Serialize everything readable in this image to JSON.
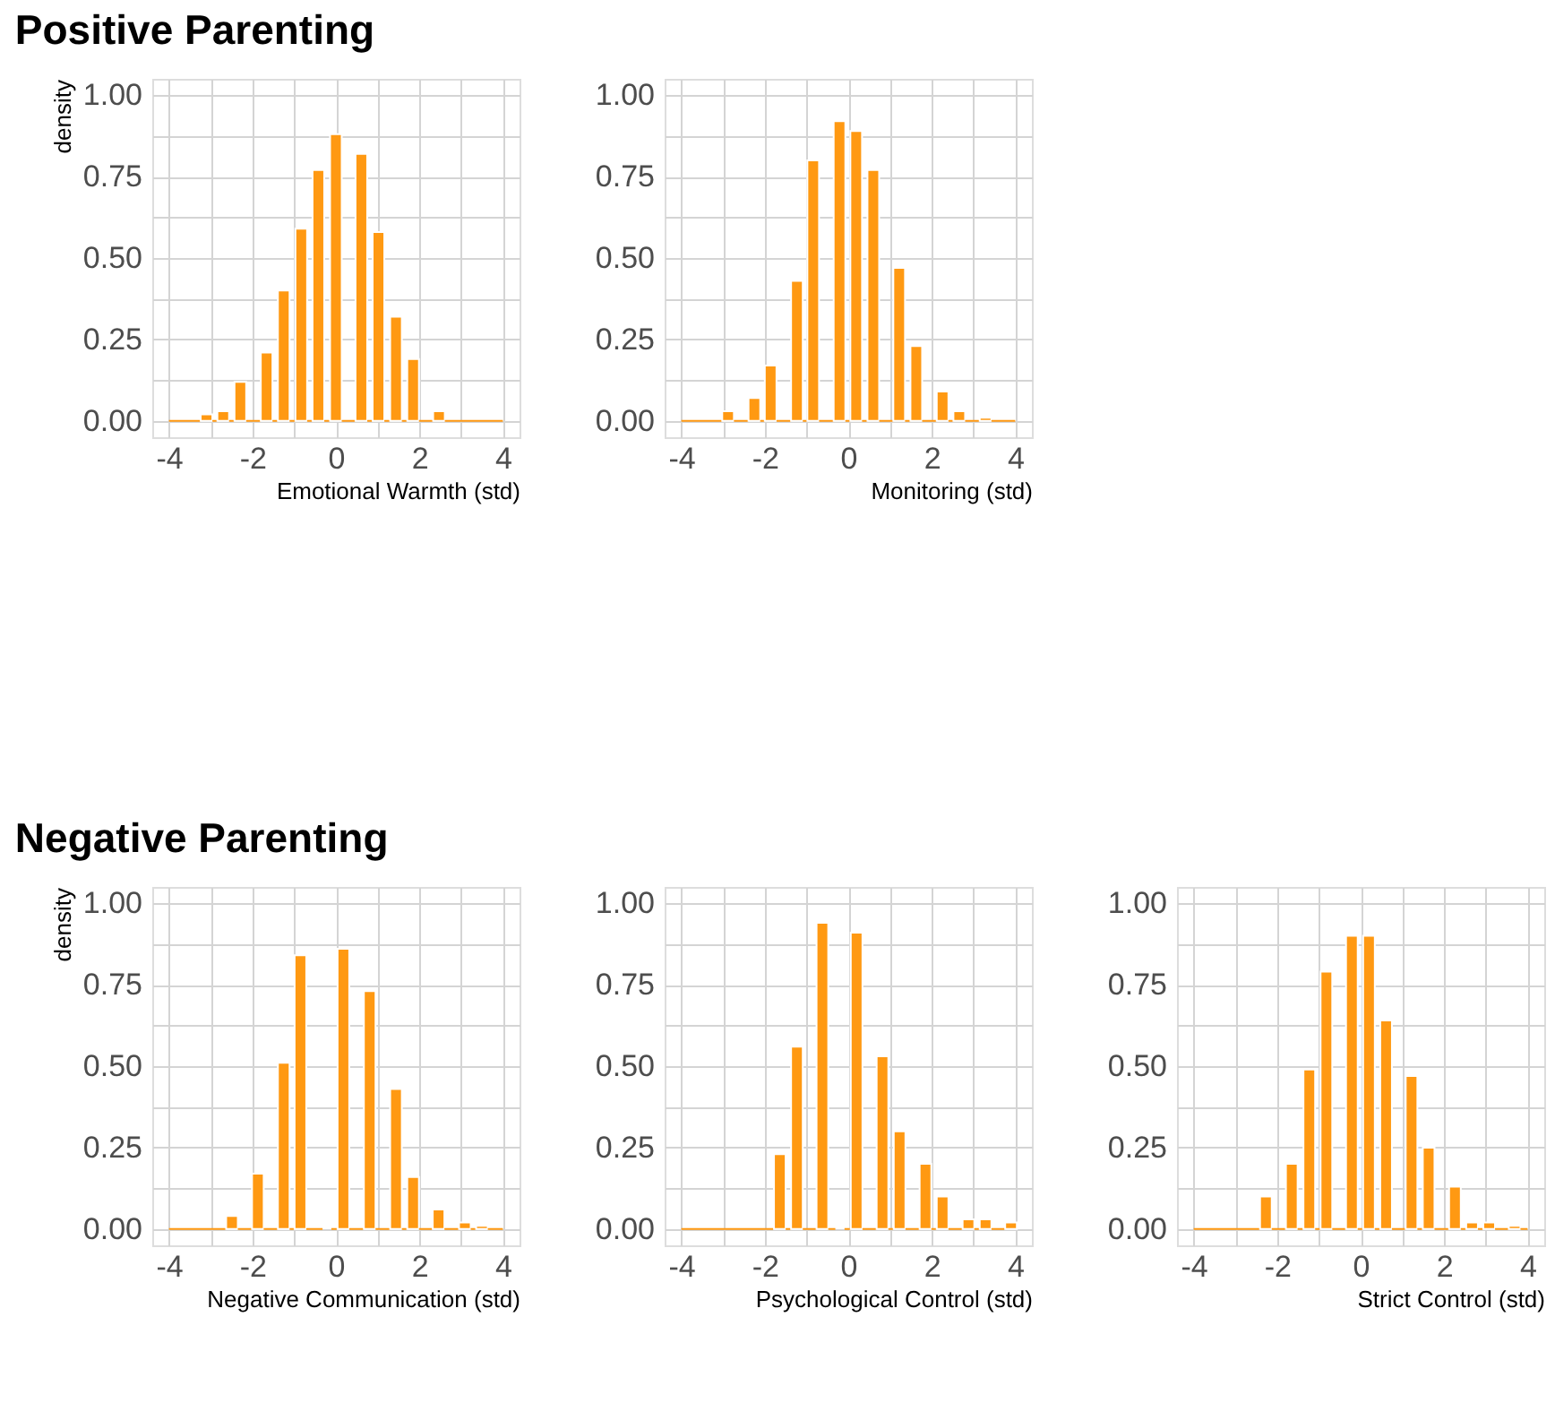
{
  "chart_data": [
    {
      "type": "histogram",
      "title": "Positive Parenting",
      "xlabel": "Emotional Warmth (std)",
      "ylabel": "density",
      "color": "#ff9912",
      "bins": [
        -4,
        -3.24,
        -2.96,
        -2.84,
        -2.56,
        -2.43,
        -2.15,
        -1.8,
        -1.52,
        -1.39,
        -1.11,
        -0.97,
        -0.69,
        -0.56,
        -0.28,
        -0.14,
        0.14,
        0.47,
        0.75,
        0.88,
        1.16,
        1.3,
        1.58,
        1.71,
        1.99,
        2.33,
        2.61,
        4
      ],
      "values": [
        0,
        0.02,
        0,
        0.03,
        0,
        0.12,
        0,
        0.21,
        0,
        0.4,
        0,
        0.59,
        0,
        0.77,
        0,
        0.88,
        0,
        0.82,
        0,
        0.58,
        0,
        0.32,
        0,
        0.19,
        0,
        0.03,
        0
      ],
      "xlim": [
        -4.4,
        4.4
      ],
      "xticks": [
        -4,
        {
          "value": -3,
          "label": null
        },
        -2,
        {
          "value": -1,
          "label": null
        },
        0,
        {
          "value": 1,
          "label": null
        },
        2,
        {
          "value": 3,
          "label": null
        },
        4
      ],
      "ylim": [
        -0.05,
        1.05
      ],
      "yticks": [
        {
          "value": 0,
          "label": "0.00"
        },
        {
          "value": 0.125,
          "label": null
        },
        {
          "value": 0.25,
          "label": "0.25"
        },
        {
          "value": 0.375,
          "label": null
        },
        {
          "value": 0.5,
          "label": "0.50"
        },
        {
          "value": 0.625,
          "label": null
        },
        {
          "value": 0.75,
          "label": "0.75"
        },
        {
          "value": 0.875,
          "label": null
        },
        {
          "value": 1,
          "label": "1.00"
        }
      ],
      "grid": true
    },
    {
      "type": "histogram",
      "xlabel": "Monitoring (std)",
      "color": "#ff9912",
      "bins": [
        -4,
        -3.02,
        -2.74,
        -2.39,
        -2.11,
        -2.0,
        -1.72,
        -1.37,
        -1.09,
        -0.98,
        -0.7,
        -0.35,
        -0.07,
        0.05,
        0.33,
        0.46,
        0.74,
        1.08,
        1.36,
        1.49,
        1.77,
        2.12,
        2.4,
        2.52,
        2.8,
        3.15,
        3.43,
        4
      ],
      "values": [
        0,
        0.03,
        0,
        0.07,
        0,
        0.17,
        0,
        0.43,
        0,
        0.8,
        0,
        0.92,
        0,
        0.89,
        0,
        0.77,
        0,
        0.47,
        0,
        0.23,
        0,
        0.09,
        0,
        0.03,
        0,
        0.01,
        0
      ],
      "xlim": [
        -4.4,
        4.4
      ],
      "xticks": [
        -4,
        {
          "value": -3,
          "label": null
        },
        -2,
        {
          "value": -1,
          "label": null
        },
        0,
        {
          "value": 1,
          "label": null
        },
        2,
        {
          "value": 3,
          "label": null
        },
        4
      ],
      "ylim": [
        -0.05,
        1.05
      ],
      "yticks": [
        {
          "value": 0,
          "label": "0.00"
        },
        {
          "value": 0.125,
          "label": null
        },
        {
          "value": 0.25,
          "label": "0.25"
        },
        {
          "value": 0.375,
          "label": null
        },
        {
          "value": 0.5,
          "label": "0.50"
        },
        {
          "value": 0.625,
          "label": null
        },
        {
          "value": 0.75,
          "label": "0.75"
        },
        {
          "value": 0.875,
          "label": null
        },
        {
          "value": 1,
          "label": "1.00"
        }
      ],
      "grid": true
    },
    {
      "type": "histogram",
      "title": "Negative Parenting",
      "xlabel": "Negative Communication (std)",
      "ylabel": "density",
      "color": "#ff9912",
      "bins": [
        -4,
        -2.63,
        -2.35,
        -2.01,
        -1.73,
        -1.39,
        -1.11,
        -0.99,
        -0.71,
        -0.32,
        -0.11,
        0.04,
        0.32,
        0.67,
        0.95,
        1.3,
        1.58,
        1.71,
        1.99,
        2.32,
        2.6,
        2.95,
        3.23,
        3.36,
        3.64,
        4
      ],
      "values": [
        0,
        0.04,
        0,
        0.17,
        0,
        0.51,
        0,
        0.84,
        0,
        null,
        0,
        0.86,
        0,
        0.73,
        0,
        0.43,
        0,
        0.16,
        0,
        0.06,
        0,
        0.02,
        0,
        0.01,
        0
      ],
      "xlim": [
        -4.4,
        4.4
      ],
      "xticks": [
        -4,
        {
          "value": -3,
          "label": null
        },
        -2,
        {
          "value": -1,
          "label": null
        },
        0,
        {
          "value": 1,
          "label": null
        },
        2,
        {
          "value": 3,
          "label": null
        },
        4
      ],
      "ylim": [
        -0.05,
        1.05
      ],
      "yticks": [
        {
          "value": 0,
          "label": "0.00"
        },
        {
          "value": 0.125,
          "label": null
        },
        {
          "value": 0.25,
          "label": "0.25"
        },
        {
          "value": 0.375,
          "label": null
        },
        {
          "value": 0.5,
          "label": "0.50"
        },
        {
          "value": 0.625,
          "label": null
        },
        {
          "value": 0.75,
          "label": "0.75"
        },
        {
          "value": 0.875,
          "label": null
        },
        {
          "value": 1,
          "label": "1.00"
        }
      ],
      "grid": true
    },
    {
      "type": "histogram",
      "xlabel": "Psychological Control (std)",
      "color": "#ff9912",
      "bins": [
        -4,
        -1.78,
        -1.5,
        -1.37,
        -1.09,
        -0.76,
        -0.48,
        -0.31,
        -0.09,
        0.06,
        0.34,
        0.68,
        0.96,
        1.09,
        1.37,
        1.71,
        1.99,
        2.12,
        2.4,
        2.74,
        3.02,
        3.15,
        3.43,
        3.76,
        4.04
      ],
      "values": [
        0,
        0.23,
        0,
        0.56,
        0,
        0.94,
        0,
        null,
        0,
        0.91,
        0,
        0.53,
        0,
        0.3,
        0,
        0.2,
        0,
        0.1,
        0,
        0.03,
        0,
        0.03,
        0,
        0.02
      ],
      "xlim": [
        -4.4,
        4.4
      ],
      "xticks": [
        -4,
        {
          "value": -3,
          "label": null
        },
        -2,
        {
          "value": -1,
          "label": null
        },
        0,
        {
          "value": 1,
          "label": null
        },
        2,
        {
          "value": 3,
          "label": null
        },
        4
      ],
      "ylim": [
        -0.05,
        1.05
      ],
      "yticks": [
        {
          "value": 0,
          "label": "0.00"
        },
        {
          "value": 0.125,
          "label": null
        },
        {
          "value": 0.25,
          "label": "0.25"
        },
        {
          "value": 0.375,
          "label": null
        },
        {
          "value": 0.5,
          "label": "0.50"
        },
        {
          "value": 0.625,
          "label": null
        },
        {
          "value": 0.75,
          "label": "0.75"
        },
        {
          "value": 0.875,
          "label": null
        },
        {
          "value": 1,
          "label": "1.00"
        }
      ],
      "grid": true
    },
    {
      "type": "histogram",
      "xlabel": "Strict Control (std)",
      "color": "#ff9912",
      "bins": [
        -4,
        -2.41,
        -2.13,
        -1.79,
        -1.51,
        -1.37,
        -1.09,
        -0.96,
        -0.68,
        -0.35,
        -0.07,
        0.06,
        0.34,
        0.47,
        0.75,
        1.08,
        1.36,
        1.49,
        1.77,
        2.12,
        2.4,
        2.53,
        2.81,
        2.94,
        3.22,
        3.55,
        3.83,
        4
      ],
      "values": [
        0,
        0.1,
        0,
        0.2,
        0,
        0.49,
        0,
        0.79,
        0,
        0.9,
        0,
        0.9,
        0,
        0.64,
        0,
        0.47,
        0,
        0.25,
        0,
        0.13,
        0,
        0.02,
        0,
        0.02,
        0,
        0.01,
        0
      ],
      "xlim": [
        -4.4,
        4.4
      ],
      "xticks": [
        -4,
        {
          "value": -3,
          "label": null
        },
        -2,
        {
          "value": -1,
          "label": null
        },
        0,
        {
          "value": 1,
          "label": null
        },
        2,
        {
          "value": 3,
          "label": null
        },
        4
      ],
      "ylim": [
        -0.05,
        1.05
      ],
      "yticks": [
        {
          "value": 0,
          "label": "0.00"
        },
        {
          "value": 0.125,
          "label": null
        },
        {
          "value": 0.25,
          "label": "0.25"
        },
        {
          "value": 0.375,
          "label": null
        },
        {
          "value": 0.5,
          "label": "0.50"
        },
        {
          "value": 0.625,
          "label": null
        },
        {
          "value": 0.75,
          "label": "0.75"
        },
        {
          "value": 0.875,
          "label": null
        },
        {
          "value": 1,
          "label": "1.00"
        }
      ],
      "grid": true
    }
  ]
}
